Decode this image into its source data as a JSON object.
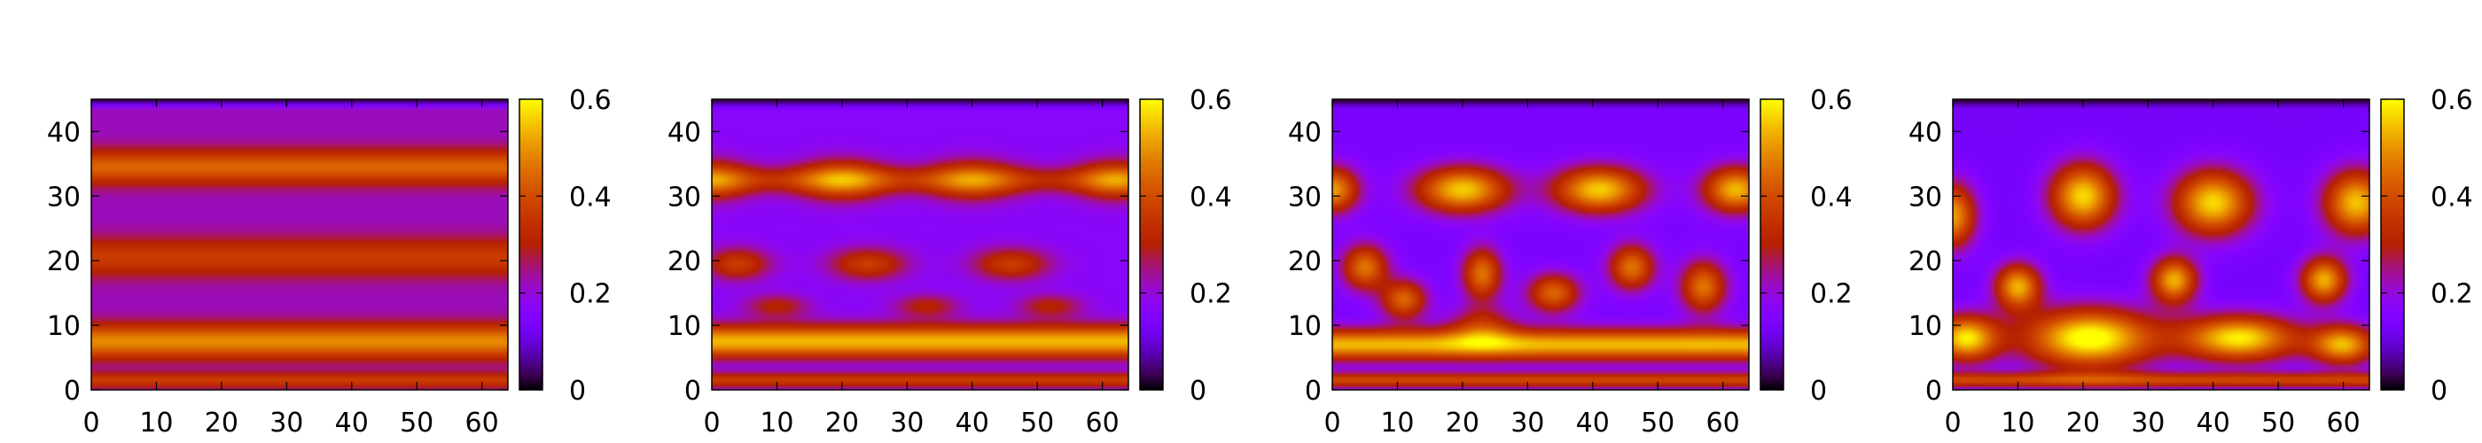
{
  "chart_data": [
    {
      "type": "heatmap",
      "title": "",
      "xlabel": "",
      "ylabel": "",
      "x_ticks": [
        "0",
        "10",
        "20",
        "30",
        "40",
        "50",
        "60"
      ],
      "y_ticks": [
        "0",
        "10",
        "20",
        "30",
        "40"
      ],
      "colorbar_ticks": [
        "0",
        "0.2",
        "0.4",
        "0.6"
      ],
      "xlim": [
        0,
        64
      ],
      "ylim": [
        0,
        45
      ],
      "clim": [
        0,
        0.6
      ],
      "background": 0.22,
      "bands": [
        {
          "y": 1.5,
          "width": 1.2,
          "amp": 0.15
        },
        {
          "y": 7.5,
          "width": 2.6,
          "amp": 0.27
        },
        {
          "y": 20.5,
          "width": 3.0,
          "amp": 0.15
        },
        {
          "y": 34.5,
          "width": 2.6,
          "amp": 0.22
        }
      ],
      "blobs": []
    },
    {
      "type": "heatmap",
      "title": "",
      "xlabel": "",
      "ylabel": "",
      "x_ticks": [
        "0",
        "10",
        "20",
        "30",
        "40",
        "50",
        "60"
      ],
      "y_ticks": [
        "0",
        "10",
        "20",
        "30",
        "40"
      ],
      "colorbar_ticks": [
        "0",
        "0.2",
        "0.4",
        "0.6"
      ],
      "xlim": [
        0,
        64
      ],
      "ylim": [
        0,
        45
      ],
      "clim": [
        0,
        0.6
      ],
      "background": 0.17,
      "bands": [
        {
          "y": 1.5,
          "width": 1.2,
          "amp": 0.2
        },
        {
          "y": 7.5,
          "width": 2.5,
          "amp": 0.37
        },
        {
          "y": 32.5,
          "width": 2.0,
          "amp": 0.14
        }
      ],
      "blobs": [
        {
          "x": 0,
          "y": 32.5,
          "rx": 6,
          "ry": 3.2,
          "amp": 0.22
        },
        {
          "x": 20,
          "y": 32.5,
          "rx": 7,
          "ry": 3.2,
          "amp": 0.25
        },
        {
          "x": 40,
          "y": 32.5,
          "rx": 7,
          "ry": 3.2,
          "amp": 0.22
        },
        {
          "x": 62,
          "y": 32.5,
          "rx": 6,
          "ry": 3.2,
          "amp": 0.22
        },
        {
          "x": 4,
          "y": 19.5,
          "rx": 5,
          "ry": 2.5,
          "amp": 0.2
        },
        {
          "x": 24,
          "y": 19.5,
          "rx": 6,
          "ry": 2.5,
          "amp": 0.2
        },
        {
          "x": 46,
          "y": 19.5,
          "rx": 6,
          "ry": 2.5,
          "amp": 0.2
        },
        {
          "x": 10,
          "y": 13,
          "rx": 5,
          "ry": 1.8,
          "amp": 0.14
        },
        {
          "x": 33,
          "y": 13,
          "rx": 5,
          "ry": 1.8,
          "amp": 0.14
        },
        {
          "x": 52,
          "y": 13,
          "rx": 5,
          "ry": 1.8,
          "amp": 0.14
        }
      ]
    },
    {
      "type": "heatmap",
      "title": "",
      "xlabel": "",
      "ylabel": "",
      "x_ticks": [
        "0",
        "10",
        "20",
        "30",
        "40",
        "50",
        "60"
      ],
      "y_ticks": [
        "0",
        "10",
        "20",
        "30",
        "40"
      ],
      "colorbar_ticks": [
        "0",
        "0.2",
        "0.4",
        "0.6"
      ],
      "xlim": [
        0,
        64
      ],
      "ylim": [
        0,
        45
      ],
      "clim": [
        0,
        0.6
      ],
      "background": 0.14,
      "bands": [
        {
          "y": 1.5,
          "width": 1.2,
          "amp": 0.25
        },
        {
          "y": 7,
          "width": 2.4,
          "amp": 0.4
        }
      ],
      "blobs": [
        {
          "x": 0,
          "y": 31,
          "rx": 4,
          "ry": 3.5,
          "amp": 0.37
        },
        {
          "x": 20,
          "y": 31,
          "rx": 7,
          "ry": 3.5,
          "amp": 0.42
        },
        {
          "x": 41,
          "y": 31,
          "rx": 7,
          "ry": 3.5,
          "amp": 0.42
        },
        {
          "x": 62,
          "y": 31,
          "rx": 5,
          "ry": 3.5,
          "amp": 0.4
        },
        {
          "x": 5,
          "y": 19,
          "rx": 3.5,
          "ry": 3.5,
          "amp": 0.32
        },
        {
          "x": 11,
          "y": 14,
          "rx": 3.5,
          "ry": 3,
          "amp": 0.3
        },
        {
          "x": 23,
          "y": 18,
          "rx": 3,
          "ry": 4,
          "amp": 0.32
        },
        {
          "x": 34,
          "y": 15,
          "rx": 4,
          "ry": 3,
          "amp": 0.3
        },
        {
          "x": 46,
          "y": 19,
          "rx": 3.5,
          "ry": 3.5,
          "amp": 0.32
        },
        {
          "x": 57,
          "y": 16,
          "rx": 3.5,
          "ry": 4,
          "amp": 0.32
        },
        {
          "x": 23,
          "y": 10,
          "rx": 5,
          "ry": 3,
          "amp": 0.18
        }
      ]
    },
    {
      "type": "heatmap",
      "title": "",
      "xlabel": "",
      "ylabel": "",
      "x_ticks": [
        "0",
        "10",
        "20",
        "30",
        "40",
        "50",
        "60"
      ],
      "y_ticks": [
        "0",
        "10",
        "20",
        "30",
        "40"
      ],
      "colorbar_ticks": [
        "0",
        "0.2",
        "0.4",
        "0.6"
      ],
      "xlim": [
        0,
        64
      ],
      "ylim": [
        0,
        45
      ],
      "clim": [
        0,
        0.6
      ],
      "background": 0.13,
      "bands": [
        {
          "y": 1.5,
          "width": 1.2,
          "amp": 0.25
        }
      ],
      "blobs": [
        {
          "x": 0,
          "y": 27,
          "rx": 3.5,
          "ry": 5,
          "amp": 0.38
        },
        {
          "x": 20,
          "y": 30,
          "rx": 5,
          "ry": 5,
          "amp": 0.44
        },
        {
          "x": 40,
          "y": 29,
          "rx": 6,
          "ry": 5,
          "amp": 0.44
        },
        {
          "x": 62,
          "y": 29,
          "rx": 5,
          "ry": 5,
          "amp": 0.42
        },
        {
          "x": 10,
          "y": 16,
          "rx": 3.5,
          "ry": 3.5,
          "amp": 0.4
        },
        {
          "x": 34,
          "y": 17,
          "rx": 3.5,
          "ry": 3.5,
          "amp": 0.4
        },
        {
          "x": 57,
          "y": 17,
          "rx": 3.5,
          "ry": 3.5,
          "amp": 0.4
        },
        {
          "x": 2,
          "y": 8,
          "rx": 5,
          "ry": 3.5,
          "amp": 0.45
        },
        {
          "x": 21,
          "y": 8,
          "rx": 10,
          "ry": 4.5,
          "amp": 0.5
        },
        {
          "x": 44,
          "y": 8,
          "rx": 9,
          "ry": 3.5,
          "amp": 0.46
        },
        {
          "x": 60,
          "y": 7,
          "rx": 5,
          "ry": 3,
          "amp": 0.4
        }
      ]
    }
  ]
}
